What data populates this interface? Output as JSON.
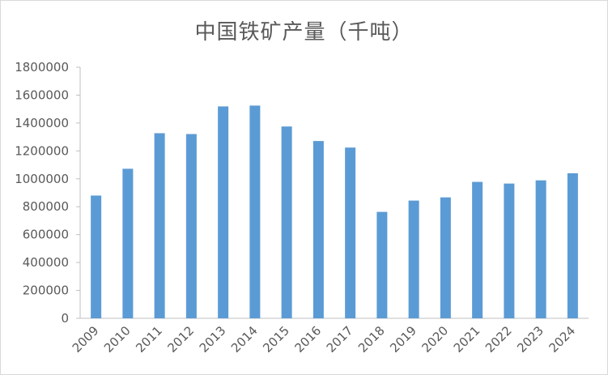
{
  "chart_data": {
    "type": "bar",
    "title": "中国铁矿产量（千吨）",
    "xlabel": "",
    "ylabel": "",
    "categories": [
      "2009",
      "2010",
      "2011",
      "2012",
      "2013",
      "2014",
      "2015",
      "2016",
      "2017",
      "2018",
      "2019",
      "2020",
      "2021",
      "2022",
      "2023",
      "2024"
    ],
    "values": [
      880000,
      1072000,
      1327000,
      1321000,
      1519000,
      1525000,
      1375000,
      1271000,
      1224000,
      763000,
      844000,
      867000,
      978000,
      966000,
      989000,
      1040000
    ],
    "ylim": [
      0,
      1800000
    ],
    "yticks": [
      "0",
      "200000",
      "400000",
      "600000",
      "800000",
      "1000000",
      "1200000",
      "1400000",
      "1600000",
      "1800000"
    ],
    "bar_color": "#5B9BD5",
    "grid": false,
    "legend": "none"
  }
}
